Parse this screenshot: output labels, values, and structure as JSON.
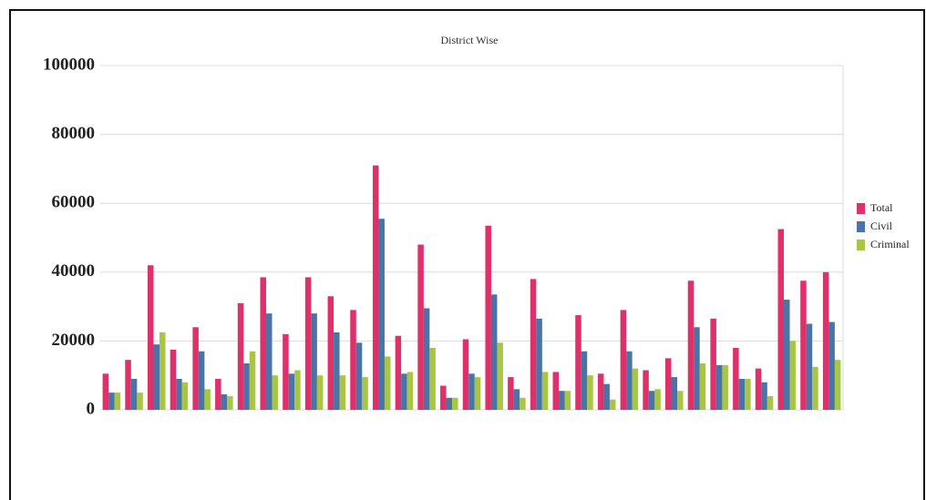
{
  "chart_data": {
    "type": "bar",
    "title": "District Wise",
    "categories": [
      null,
      null,
      null,
      null,
      null,
      null,
      null,
      null,
      null,
      null,
      null,
      null,
      null,
      null,
      null,
      null,
      null,
      null,
      null,
      null,
      null,
      null,
      null,
      null,
      null,
      null,
      null,
      null,
      null,
      null,
      null,
      null,
      null
    ],
    "series": [
      {
        "name": "Total",
        "color": "#e0306a",
        "values": [
          10500,
          14500,
          42000,
          17500,
          24000,
          9000,
          31000,
          38500,
          22000,
          38500,
          33000,
          29000,
          71000,
          21500,
          48000,
          7000,
          20500,
          53500,
          9500,
          38000,
          11000,
          27500,
          10500,
          29000,
          11500,
          15000,
          37500,
          26500,
          18000,
          12000,
          52500,
          37500,
          40000
        ]
      },
      {
        "name": "Civil",
        "color": "#4a73a8",
        "values": [
          5000,
          9000,
          19000,
          9000,
          17000,
          4500,
          13500,
          28000,
          10500,
          28000,
          22500,
          19500,
          55500,
          10500,
          29500,
          3500,
          10500,
          33500,
          6000,
          26500,
          5500,
          17000,
          7500,
          17000,
          5500,
          9500,
          24000,
          13000,
          9000,
          8000,
          32000,
          25000,
          25500
        ]
      },
      {
        "name": "Criminal",
        "color": "#a8c544",
        "values": [
          5000,
          5000,
          22500,
          8000,
          6000,
          4000,
          17000,
          10000,
          11500,
          10000,
          10000,
          9500,
          15500,
          11000,
          18000,
          3500,
          9500,
          19500,
          3500,
          11000,
          5500,
          10000,
          3000,
          12000,
          6000,
          5500,
          13500,
          13000,
          9000,
          4000,
          20000,
          12500,
          14500
        ]
      }
    ],
    "ylim": [
      0,
      100000
    ],
    "yticks": [
      0,
      20000,
      40000,
      60000,
      80000,
      100000
    ],
    "grid": true,
    "legend": "right"
  }
}
